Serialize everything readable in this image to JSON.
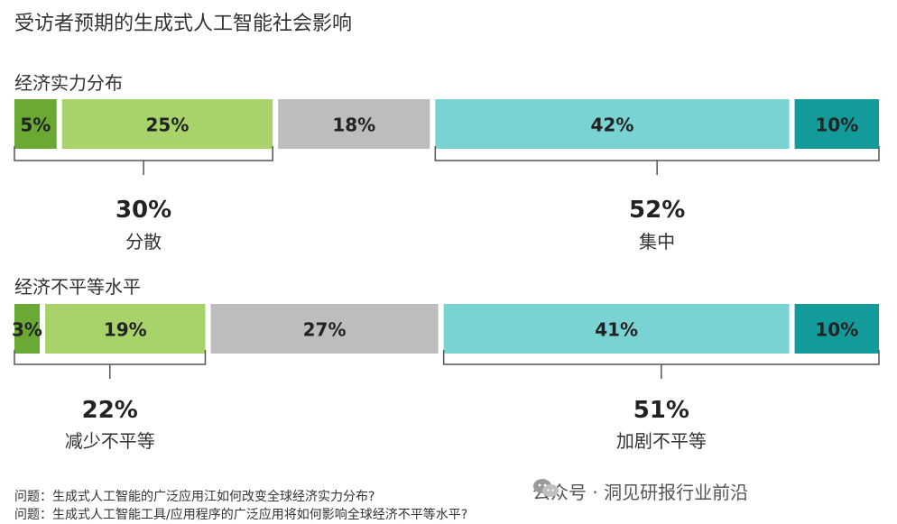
{
  "title": "受访者预期的生成式人工智能社会影响",
  "chart_data": [
    {
      "type": "bar",
      "orientation": "stacked-horizontal",
      "label": "经济实力分布",
      "segments": [
        {
          "value": 5,
          "text": "5%",
          "color": "#6aa934"
        },
        {
          "value": 25,
          "text": "25%",
          "color": "#a8d36a"
        },
        {
          "value": 18,
          "text": "18%",
          "color": "#bdbdbd"
        },
        {
          "value": 42,
          "text": "42%",
          "color": "#7ad3d3"
        },
        {
          "value": 10,
          "text": "10%",
          "color": "#139a9a"
        }
      ],
      "groups": [
        {
          "value_text": "30%",
          "label": "分散",
          "from": 0,
          "to": 1
        },
        {
          "value_text": "52%",
          "label": "集中",
          "from": 3,
          "to": 4
        }
      ]
    },
    {
      "type": "bar",
      "orientation": "stacked-horizontal",
      "label": "经济不平等水平",
      "segments": [
        {
          "value": 3,
          "text": "3%",
          "color": "#6aa934"
        },
        {
          "value": 19,
          "text": "19%",
          "color": "#a8d36a"
        },
        {
          "value": 27,
          "text": "27%",
          "color": "#bdbdbd"
        },
        {
          "value": 41,
          "text": "41%",
          "color": "#7ad3d3"
        },
        {
          "value": 10,
          "text": "10%",
          "color": "#139a9a"
        }
      ],
      "groups": [
        {
          "value_text": "22%",
          "label": "减少不平等",
          "from": 0,
          "to": 1
        },
        {
          "value_text": "51%",
          "label": "加剧不平等",
          "from": 3,
          "to": 4
        }
      ]
    }
  ],
  "questions": [
    "问题：生成式人工智能的广泛应用江如何改变全球经济实力分布?",
    "问题：生成式人工智能工具/应用程序的广泛应用将如何影响全球经济不平等水平?"
  ],
  "watermark": "公众号 · 洞见研报行业前沿"
}
